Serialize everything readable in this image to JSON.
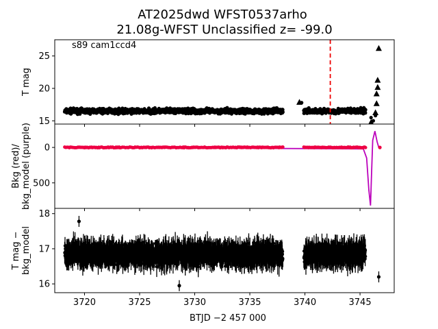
{
  "title_line1": "AT2025dwd  WFST0537arho",
  "title_line2": "21.08g-WFST Unclassified z= -99.0",
  "colors": {
    "points": "#000000",
    "bkg": "#ee0044",
    "bkg_model": "#bb00bb",
    "marker_line": "#ee0000"
  },
  "chart_data": [
    {
      "type": "scatter",
      "panel": "top",
      "ylabel": "T mag",
      "annotation": "s89 cam1ccd4",
      "y_inverted": true,
      "xlim": [
        3717.3,
        3748.1
      ],
      "ylim": [
        27.5,
        14.5
      ],
      "yticks": [
        15,
        20,
        25
      ],
      "segments": [
        {
          "x_start": 3718.2,
          "x_end": 3738.0,
          "y_center": 16.5,
          "spread": 0.5
        },
        {
          "x_start": 3739.9,
          "x_end": 3745.5,
          "y_center": 16.5,
          "spread": 0.5
        }
      ],
      "extra_points": [
        {
          "x": 3739.7,
          "y": 17.8
        },
        {
          "x": 3746.0,
          "y": 15.5
        },
        {
          "x": 3746.2,
          "y": 15.0
        },
        {
          "x": 3746.4,
          "y": 15.8
        }
      ],
      "upper_limits": [
        {
          "x": 3739.5,
          "y": 17.9
        },
        {
          "x": 3746.0,
          "y": 14.8
        },
        {
          "x": 3746.4,
          "y": 16.3
        },
        {
          "x": 3746.5,
          "y": 17.7
        },
        {
          "x": 3746.5,
          "y": 19.2
        },
        {
          "x": 3746.6,
          "y": 20.2
        },
        {
          "x": 3746.6,
          "y": 21.3
        },
        {
          "x": 3746.7,
          "y": 26.2
        }
      ],
      "vline_x": 3742.3
    },
    {
      "type": "line",
      "panel": "middle",
      "ylabel": "Bkg (red)/\nbkg_model (purple)",
      "xlim": [
        3717.3,
        3748.1
      ],
      "ylim": [
        -330,
        860
      ],
      "yticks": [
        0,
        500
      ],
      "series": [
        {
          "name": "bkg",
          "segments": [
            [
              3718.2,
              3738.0
            ],
            [
              3739.9,
              3745.5
            ]
          ],
          "y": 0
        },
        {
          "name": "bkg_model",
          "x": [
            3718.2,
            3745.3,
            3745.6,
            3745.8,
            3745.95,
            3746.05,
            3746.15,
            3746.35,
            3746.55,
            3746.7
          ],
          "y": [
            0,
            20,
            150,
            600,
            820,
            350,
            -100,
            -230,
            -80,
            0
          ]
        }
      ],
      "extra_points": [
        {
          "x": 3746.8,
          "y": 0
        }
      ]
    },
    {
      "type": "scatter",
      "panel": "bottom",
      "ylabel": "T mag −\nbkg_model",
      "y_inverted": true,
      "xlim": [
        3717.3,
        3748.1
      ],
      "ylim": [
        18.15,
        15.75
      ],
      "yticks": [
        16,
        17,
        18
      ],
      "xticks": [
        3720,
        3725,
        3730,
        3735,
        3740,
        3745
      ],
      "xlabel": "BTJD −2 457 000",
      "segments": [
        {
          "x_start": 3718.2,
          "x_end": 3738.0,
          "y_center": 16.85,
          "spread": 0.35
        },
        {
          "x_start": 3739.9,
          "x_end": 3745.5,
          "y_center": 16.85,
          "spread": 0.35
        }
      ],
      "extra_points": [
        {
          "x": 3719.5,
          "y": 17.78
        },
        {
          "x": 3728.6,
          "y": 15.95
        },
        {
          "x": 3746.7,
          "y": 16.2
        }
      ]
    }
  ]
}
